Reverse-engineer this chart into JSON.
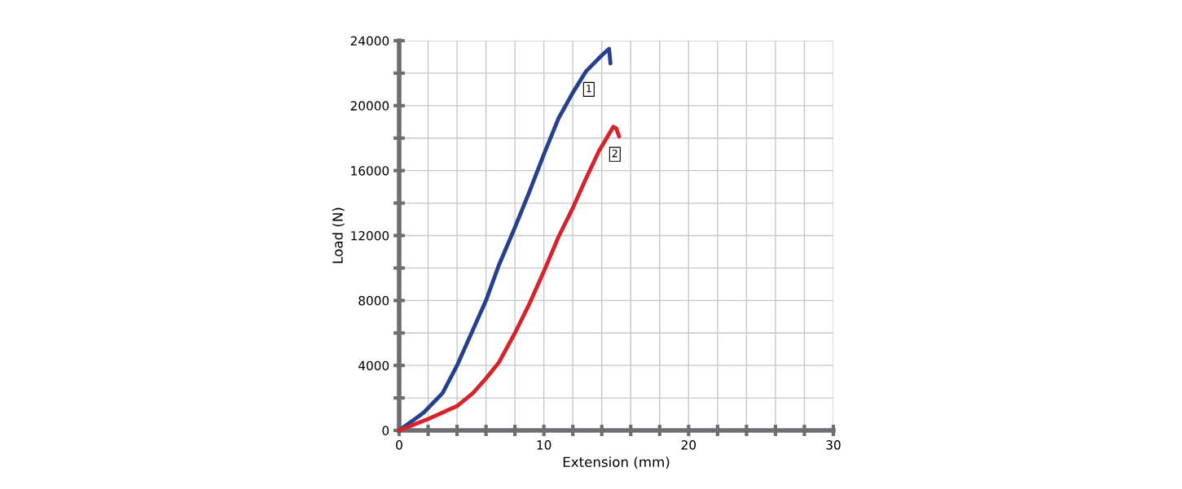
{
  "chart_data": {
    "type": "line",
    "xlabel": "Extension (mm)",
    "ylabel": "Load (N)",
    "xlim": [
      0,
      30
    ],
    "ylim": [
      0,
      24000
    ],
    "xticks": [
      0,
      {
        "value": 2,
        "label": null
      },
      {
        "value": 4,
        "label": null
      },
      {
        "value": 6,
        "label": null
      },
      {
        "value": 8,
        "label": null
      },
      10,
      {
        "value": 12,
        "label": null
      },
      {
        "value": 14,
        "label": null
      },
      {
        "value": 16,
        "label": null
      },
      {
        "value": 18,
        "label": null
      },
      20,
      {
        "value": 22,
        "label": null
      },
      {
        "value": 24,
        "label": null
      },
      {
        "value": 26,
        "label": null
      },
      {
        "value": 28,
        "label": null
      },
      30
    ],
    "yticks": [
      0,
      {
        "value": 2000,
        "label": null
      },
      4000,
      {
        "value": 6000,
        "label": null
      },
      8000,
      {
        "value": 10000,
        "label": null
      },
      12000,
      {
        "value": 14000,
        "label": null
      },
      16000,
      {
        "value": 18000,
        "label": null
      },
      20000,
      {
        "value": 22000,
        "label": null
      },
      24000
    ],
    "grid": true,
    "marker": "none",
    "line_style": "solid",
    "series": [
      {
        "color": "#24408e",
        "x": [
          0,
          1.7,
          3.0,
          4.0,
          5.1,
          6.0,
          6.9,
          8.0,
          9.0,
          10.0,
          11.0,
          12.0,
          12.9,
          14.0,
          14.5,
          14.6
        ],
        "values": [
          0,
          1100,
          2300,
          4000,
          6200,
          8000,
          10200,
          12500,
          14700,
          17000,
          19200,
          20800,
          22100,
          23100,
          23500,
          22600
        ]
      },
      {
        "color": "#d7212b",
        "x": [
          0,
          2.0,
          4.0,
          5.1,
          6.0,
          6.9,
          8.0,
          9.0,
          10.0,
          11.0,
          12.0,
          12.9,
          13.8,
          14.4,
          14.8,
          15.0,
          15.2
        ],
        "values": [
          0,
          700,
          1500,
          2300,
          3200,
          4200,
          6000,
          7800,
          9800,
          11900,
          13700,
          15500,
          17200,
          18100,
          18700,
          18600,
          18100
        ]
      }
    ],
    "annotations": [
      {
        "text": "1",
        "x": 12.1,
        "y": 21000
      },
      {
        "text": "2",
        "x": 13.9,
        "y": 17000
      }
    ]
  }
}
